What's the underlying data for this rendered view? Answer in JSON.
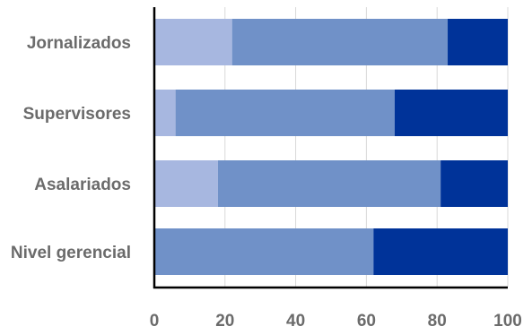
{
  "chart_data": {
    "type": "bar",
    "orientation": "horizontal",
    "stacked": true,
    "categories": [
      "Jornalizados",
      "Supervisores",
      "Asalariados",
      "Nivel gerencial"
    ],
    "series": [
      {
        "color": "#a7b7e0",
        "values": [
          22,
          6,
          18,
          0
        ]
      },
      {
        "color": "#7091c8",
        "values": [
          61,
          62,
          63,
          62
        ]
      },
      {
        "color": "#003399",
        "values": [
          17,
          32,
          19,
          38
        ]
      }
    ],
    "xticks": [
      "0",
      "20",
      "40",
      "60",
      "80",
      "100"
    ],
    "xlim": [
      0,
      100
    ],
    "grid": true,
    "legend": "none"
  }
}
